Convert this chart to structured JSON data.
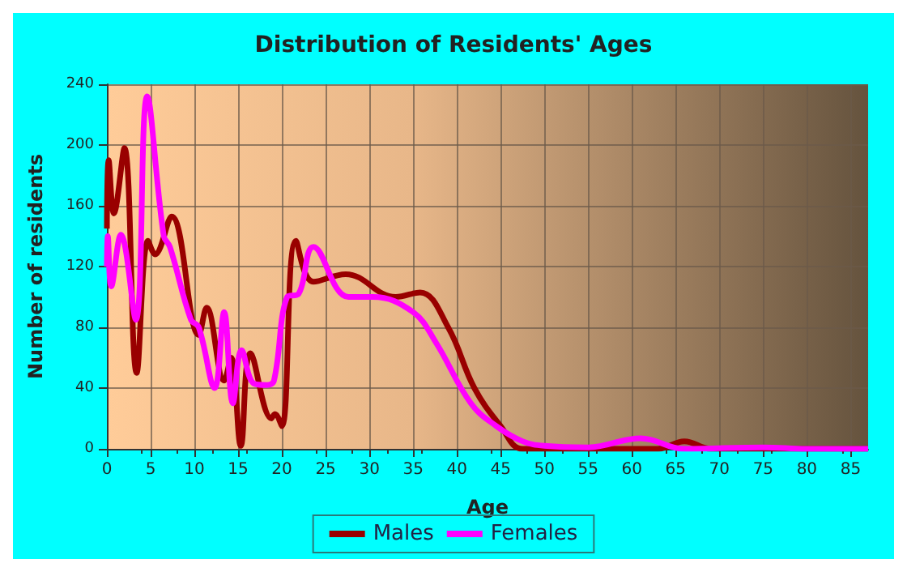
{
  "chart_data": {
    "type": "line",
    "title": "Distribution of Residents' Ages",
    "xlabel": "Age",
    "ylabel": "Number of residents",
    "xlim": [
      0,
      87
    ],
    "xticks": [
      0,
      5,
      10,
      15,
      20,
      25,
      30,
      35,
      40,
      45,
      50,
      55,
      60,
      65,
      70,
      75,
      80,
      85
    ],
    "ylim": [
      0,
      240
    ],
    "yticks": [
      0,
      40,
      80,
      120,
      160,
      200,
      240
    ],
    "grid": true,
    "legend": "bottom",
    "series": [
      {
        "name": "Males",
        "color": "#990000",
        "x": [
          0,
          0.2,
          0.8,
          2,
          3.4,
          4.7,
          5.5,
          7.4,
          10.5,
          11.4,
          13.4,
          14.2,
          15.3,
          16.4,
          18.8,
          19.2,
          20,
          21.6,
          23.6,
          27.3,
          33,
          35.8,
          39,
          42,
          45,
          47.5,
          55,
          63,
          66,
          69,
          75,
          87
        ],
        "values": [
          145,
          190,
          155,
          198,
          50,
          137,
          128,
          153,
          75,
          93,
          45,
          60,
          2,
          63,
          20,
          23,
          15,
          137,
          110,
          115,
          100,
          103,
          80,
          40,
          15,
          0,
          0,
          0,
          5,
          0,
          0,
          0
        ]
      },
      {
        "name": "Females",
        "color": "#ff00ff",
        "x": [
          0,
          0.1,
          0.5,
          1.6,
          3.3,
          4.6,
          6.5,
          7.2,
          9.6,
          10.5,
          12.3,
          13.4,
          14.4,
          15.4,
          16.8,
          18.3,
          19.1,
          20.6,
          21.9,
          23.6,
          27.6,
          30.4,
          35,
          37.6,
          41.6,
          44.5,
          47.5,
          50,
          55,
          61,
          66,
          75,
          80,
          87
        ],
        "values": [
          120,
          140,
          107,
          141,
          85,
          232,
          140,
          133,
          85,
          80,
          40,
          90,
          30,
          65,
          43,
          42,
          45,
          100,
          102,
          133,
          100,
          100,
          90,
          70,
          30,
          15,
          5,
          2,
          1,
          7,
          0,
          1,
          0,
          0
        ]
      }
    ]
  }
}
